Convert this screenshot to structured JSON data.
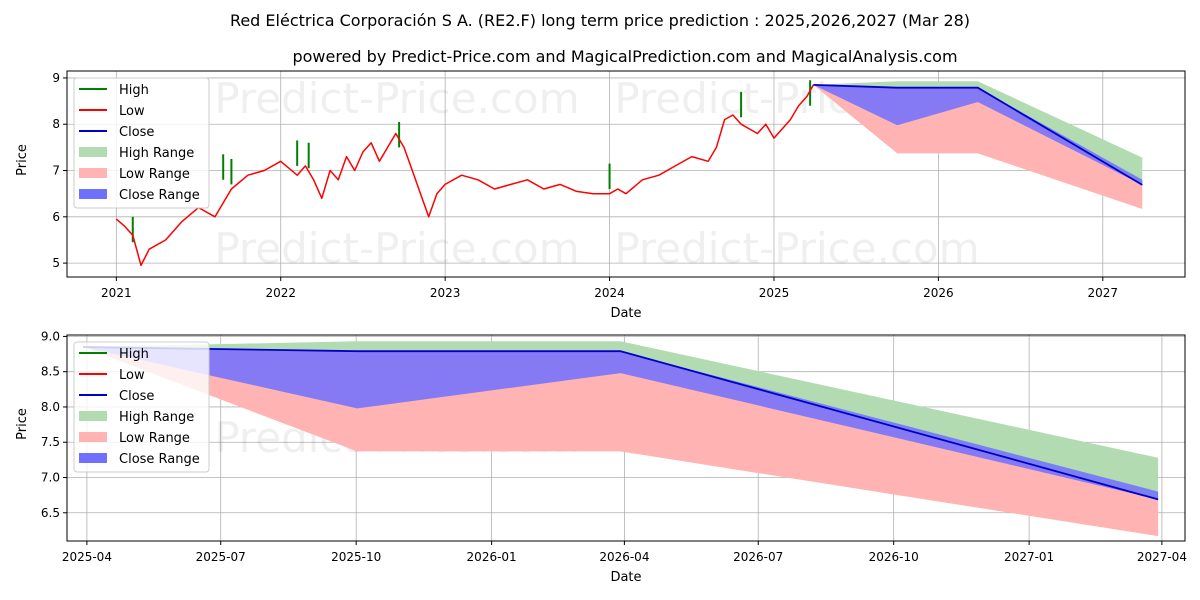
{
  "title_line1": "Red Eléctrica Corporación S A. (RE2.F) long term price prediction : 2025,2026,2027 (Mar 28)",
  "title_line2": "powered by Predict-Price.com and MagicalPrediction.com and MagicalAnalysis.com",
  "watermark": "Predict-Price.com",
  "colors": {
    "high": "#008000",
    "low": "#ff0000",
    "close": "#0000cd",
    "high_range": "#b2dbb2",
    "low_range": "#ffb3b3",
    "close_range": "#7070ff"
  },
  "legend": [
    "High",
    "Low",
    "Close",
    "High Range",
    "Low Range",
    "Close Range"
  ],
  "chart_data": [
    {
      "type": "line",
      "name": "history-and-forecast",
      "xlabel": "Date",
      "ylabel": "Price",
      "xlim": [
        2020.7,
        2027.5
      ],
      "ylim": [
        4.7,
        9.15
      ],
      "x_ticks": [
        2021,
        2022,
        2023,
        2024,
        2025,
        2026,
        2027
      ],
      "x_tick_labels": [
        "2021",
        "2022",
        "2023",
        "2024",
        "2025",
        "2026",
        "2027"
      ],
      "y_ticks": [
        5,
        6,
        7,
        8,
        9
      ],
      "y_tick_labels": [
        "5",
        "6",
        "7",
        "8",
        "9"
      ],
      "grid": true,
      "legend_position": "top-left",
      "low_history": [
        [
          2021.0,
          5.95
        ],
        [
          2021.05,
          5.8
        ],
        [
          2021.1,
          5.6
        ],
        [
          2021.15,
          4.95
        ],
        [
          2021.2,
          5.3
        ],
        [
          2021.3,
          5.5
        ],
        [
          2021.4,
          5.9
        ],
        [
          2021.5,
          6.2
        ],
        [
          2021.6,
          6.0
        ],
        [
          2021.7,
          6.6
        ],
        [
          2021.8,
          6.9
        ],
        [
          2021.9,
          7.0
        ],
        [
          2022.0,
          7.2
        ],
        [
          2022.1,
          6.9
        ],
        [
          2022.15,
          7.1
        ],
        [
          2022.2,
          6.8
        ],
        [
          2022.25,
          6.4
        ],
        [
          2022.3,
          7.0
        ],
        [
          2022.35,
          6.8
        ],
        [
          2022.4,
          7.3
        ],
        [
          2022.45,
          7.0
        ],
        [
          2022.5,
          7.4
        ],
        [
          2022.55,
          7.6
        ],
        [
          2022.6,
          7.2
        ],
        [
          2022.65,
          7.5
        ],
        [
          2022.7,
          7.8
        ],
        [
          2022.75,
          7.5
        ],
        [
          2022.8,
          7.0
        ],
        [
          2022.85,
          6.5
        ],
        [
          2022.9,
          6.0
        ],
        [
          2022.95,
          6.5
        ],
        [
          2023.0,
          6.7
        ],
        [
          2023.1,
          6.9
        ],
        [
          2023.2,
          6.8
        ],
        [
          2023.3,
          6.6
        ],
        [
          2023.4,
          6.7
        ],
        [
          2023.5,
          6.8
        ],
        [
          2023.6,
          6.6
        ],
        [
          2023.7,
          6.7
        ],
        [
          2023.8,
          6.55
        ],
        [
          2023.9,
          6.5
        ],
        [
          2024.0,
          6.5
        ],
        [
          2024.05,
          6.6
        ],
        [
          2024.1,
          6.5
        ],
        [
          2024.2,
          6.8
        ],
        [
          2024.3,
          6.9
        ],
        [
          2024.4,
          7.1
        ],
        [
          2024.5,
          7.3
        ],
        [
          2024.6,
          7.2
        ],
        [
          2024.65,
          7.5
        ],
        [
          2024.7,
          8.1
        ],
        [
          2024.75,
          8.2
        ],
        [
          2024.8,
          8.0
        ],
        [
          2024.85,
          7.9
        ],
        [
          2024.9,
          7.8
        ],
        [
          2024.95,
          8.0
        ],
        [
          2025.0,
          7.7
        ],
        [
          2025.05,
          7.9
        ],
        [
          2025.1,
          8.1
        ],
        [
          2025.15,
          8.4
        ],
        [
          2025.2,
          8.6
        ],
        [
          2025.24,
          8.85
        ]
      ],
      "high_spikes": [
        [
          2021.1,
          6.0
        ],
        [
          2021.65,
          7.35
        ],
        [
          2021.7,
          7.25
        ],
        [
          2022.1,
          7.65
        ],
        [
          2022.17,
          7.6
        ],
        [
          2022.72,
          8.05
        ],
        [
          2024.0,
          7.15
        ],
        [
          2024.8,
          8.7
        ],
        [
          2025.22,
          8.95
        ]
      ],
      "close_forecast": [
        [
          2025.24,
          8.85
        ],
        [
          2025.75,
          8.79
        ],
        [
          2026.24,
          8.79
        ],
        [
          2027.24,
          6.69
        ]
      ],
      "close_range_lower": [
        [
          2025.24,
          8.85
        ],
        [
          2025.75,
          7.98
        ],
        [
          2026.24,
          8.48
        ],
        [
          2027.24,
          6.69
        ]
      ],
      "close_range_upper": [
        [
          2025.24,
          8.85
        ],
        [
          2025.75,
          8.79
        ],
        [
          2026.24,
          8.79
        ],
        [
          2027.24,
          6.8
        ]
      ],
      "high_range": [
        [
          2025.24,
          8.85
        ],
        [
          2025.75,
          8.93
        ],
        [
          2026.24,
          8.93
        ],
        [
          2027.24,
          7.28
        ]
      ],
      "low_range": [
        [
          2025.24,
          8.85
        ],
        [
          2025.75,
          7.37
        ],
        [
          2026.24,
          7.37
        ],
        [
          2027.24,
          6.17
        ]
      ]
    },
    {
      "type": "area",
      "name": "forecast-zoom",
      "xlabel": "Date",
      "ylabel": "Price",
      "xlim": [
        2025.21,
        2027.29
      ],
      "ylim": [
        6.1,
        9.02
      ],
      "x_ticks": [
        2025.247,
        2025.496,
        2025.748,
        2026.0,
        2026.247,
        2026.496,
        2026.748,
        2027.0,
        2027.247
      ],
      "x_tick_labels": [
        "2025-04",
        "2025-07",
        "2025-10",
        "2026-01",
        "2026-04",
        "2026-07",
        "2026-10",
        "2027-01",
        "2027-04"
      ],
      "y_ticks": [
        6.5,
        7.0,
        7.5,
        8.0,
        8.5,
        9.0
      ],
      "y_tick_labels": [
        "6.5",
        "7.0",
        "7.5",
        "8.0",
        "8.5",
        "9.0"
      ],
      "grid": true,
      "legend_position": "top-left",
      "close_forecast": [
        [
          2025.24,
          8.85
        ],
        [
          2025.75,
          8.79
        ],
        [
          2026.24,
          8.79
        ],
        [
          2027.24,
          6.69
        ]
      ],
      "close_range_lower": [
        [
          2025.24,
          8.85
        ],
        [
          2025.75,
          7.98
        ],
        [
          2026.24,
          8.48
        ],
        [
          2027.24,
          6.69
        ]
      ],
      "close_range_upper": [
        [
          2025.24,
          8.85
        ],
        [
          2025.75,
          8.79
        ],
        [
          2026.24,
          8.79
        ],
        [
          2027.24,
          6.8
        ]
      ],
      "high_range": [
        [
          2025.24,
          8.85
        ],
        [
          2025.75,
          8.93
        ],
        [
          2026.24,
          8.93
        ],
        [
          2027.24,
          7.28
        ]
      ],
      "low_range": [
        [
          2025.24,
          8.85
        ],
        [
          2025.75,
          7.37
        ],
        [
          2026.24,
          7.37
        ],
        [
          2027.24,
          6.17
        ]
      ]
    }
  ]
}
